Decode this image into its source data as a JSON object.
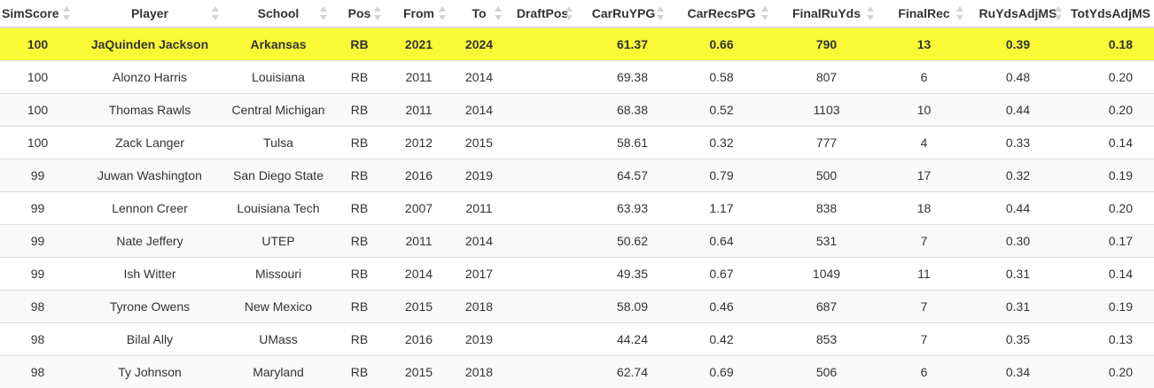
{
  "table": {
    "headers": [
      "SimScore",
      "Player",
      "School",
      "Pos",
      "From",
      "To",
      "DraftPos",
      "CarRuYPG",
      "CarRecsPG",
      "FinalRuYds",
      "FinalRec",
      "RuYdsAdjMS",
      "TotYdsAdjMS"
    ],
    "rows": [
      [
        "100",
        "JaQuinden Jackson",
        "Arkansas",
        "RB",
        "2021",
        "2024",
        "",
        "61.37",
        "0.66",
        "790",
        "13",
        "0.39",
        "0.18"
      ],
      [
        "100",
        "Alonzo Harris",
        "Louisiana",
        "RB",
        "2011",
        "2014",
        "",
        "69.38",
        "0.58",
        "807",
        "6",
        "0.48",
        "0.20"
      ],
      [
        "100",
        "Thomas Rawls",
        "Central Michigan",
        "RB",
        "2011",
        "2014",
        "",
        "68.38",
        "0.52",
        "1103",
        "10",
        "0.44",
        "0.20"
      ],
      [
        "100",
        "Zack Langer",
        "Tulsa",
        "RB",
        "2012",
        "2015",
        "",
        "58.61",
        "0.32",
        "777",
        "4",
        "0.33",
        "0.14"
      ],
      [
        "99",
        "Juwan Washington",
        "San Diego State",
        "RB",
        "2016",
        "2019",
        "",
        "64.57",
        "0.79",
        "500",
        "17",
        "0.32",
        "0.19"
      ],
      [
        "99",
        "Lennon Creer",
        "Louisiana Tech",
        "RB",
        "2007",
        "2011",
        "",
        "63.93",
        "1.17",
        "838",
        "18",
        "0.44",
        "0.20"
      ],
      [
        "99",
        "Nate Jeffery",
        "UTEP",
        "RB",
        "2011",
        "2014",
        "",
        "50.62",
        "0.64",
        "531",
        "7",
        "0.30",
        "0.17"
      ],
      [
        "99",
        "Ish Witter",
        "Missouri",
        "RB",
        "2014",
        "2017",
        "",
        "49.35",
        "0.67",
        "1049",
        "11",
        "0.31",
        "0.14"
      ],
      [
        "98",
        "Tyrone Owens",
        "New Mexico",
        "RB",
        "2015",
        "2018",
        "",
        "58.09",
        "0.46",
        "687",
        "7",
        "0.31",
        "0.19"
      ],
      [
        "98",
        "Bilal Ally",
        "UMass",
        "RB",
        "2016",
        "2019",
        "",
        "44.24",
        "0.42",
        "853",
        "7",
        "0.35",
        "0.13"
      ],
      [
        "98",
        "Ty Johnson",
        "Maryland",
        "RB",
        "2015",
        "2018",
        "",
        "62.74",
        "0.69",
        "506",
        "6",
        "0.34",
        "0.20"
      ]
    ],
    "highlight_row": 0,
    "highlight_color": "#f9f935"
  }
}
